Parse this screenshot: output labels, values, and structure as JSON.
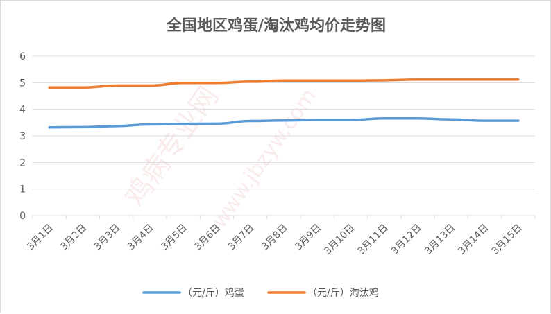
{
  "chart_data": {
    "type": "line",
    "title": "全国地区鸡蛋/淘汰鸡均价走势图",
    "categories": [
      "3月1日",
      "3月2日",
      "3月3日",
      "3月4日",
      "3月5日",
      "3月6日",
      "3月7日",
      "3月8日",
      "3月9日",
      "3月10日",
      "3月11日",
      "3月12日",
      "3月13日",
      "3月14日",
      "3月15日"
    ],
    "series": [
      {
        "name": "（元/斤）鸡蛋",
        "color": "#5b9bd5",
        "values": [
          3.32,
          3.33,
          3.37,
          3.43,
          3.45,
          3.46,
          3.56,
          3.58,
          3.6,
          3.6,
          3.66,
          3.66,
          3.62,
          3.57,
          3.57
        ]
      },
      {
        "name": "（元/斤）淘汰鸡",
        "color": "#ed7d31",
        "values": [
          4.82,
          4.82,
          4.89,
          4.89,
          4.99,
          4.99,
          5.04,
          5.08,
          5.08,
          5.08,
          5.09,
          5.12,
          5.12,
          5.12,
          5.12
        ]
      }
    ],
    "yticks": [
      0,
      1,
      2,
      3,
      4,
      5,
      6
    ],
    "ylim": [
      0,
      6
    ],
    "grid": true,
    "legend_position": "bottom",
    "xlabel": "",
    "ylabel": ""
  }
}
